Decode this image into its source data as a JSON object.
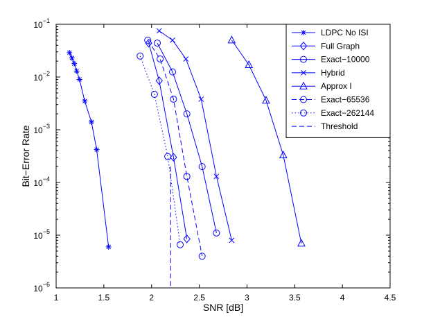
{
  "chart_data": {
    "type": "line",
    "title": "",
    "xlabel": "SNR [dB]",
    "ylabel": "Bit−Error Rate",
    "xlim": [
      1,
      4.5
    ],
    "ylim": [
      1e-06,
      0.1
    ],
    "y_scale": "log",
    "grid": false,
    "legend_position": "top-right",
    "x_ticks": [
      1,
      1.5,
      2,
      2.5,
      3,
      3.5,
      4,
      4.5
    ],
    "x_tick_labels": [
      "1",
      "1.5",
      "2",
      "2.5",
      "3",
      "3.5",
      "4",
      "4.5"
    ],
    "y_ticks": [
      1e-06,
      1e-05,
      0.0001,
      0.001,
      0.01,
      0.1
    ],
    "y_tick_bases": [
      "10",
      "10",
      "10",
      "10",
      "10",
      "10"
    ],
    "y_tick_exps": [
      "−6",
      "−5",
      "−4",
      "−3",
      "−2",
      "−1"
    ],
    "series": [
      {
        "name": "LDPC No ISI",
        "marker": "star",
        "line": "solid",
        "color": "#0000ff",
        "x": [
          1.14,
          1.165,
          1.19,
          1.215,
          1.245,
          1.3,
          1.37,
          1.425,
          1.55
        ],
        "y": [
          0.029,
          0.023,
          0.018,
          0.013,
          0.009,
          0.0035,
          0.0014,
          0.00042,
          6e-06
        ]
      },
      {
        "name": "Full Graph",
        "marker": "diamond",
        "line": "solid",
        "color": "#0000ff",
        "x": [
          1.97,
          2.08,
          2.23,
          2.37
        ],
        "y": [
          0.044,
          0.0085,
          0.0003,
          8.5e-06
        ]
      },
      {
        "name": "Exact−10000",
        "marker": "circle",
        "line": "solid",
        "color": "#0000ff",
        "x": [
          2.06,
          2.22,
          2.37,
          2.53,
          2.68
        ],
        "y": [
          0.044,
          0.0125,
          0.002,
          0.0002,
          1.1e-05
        ]
      },
      {
        "name": "Hybrid",
        "marker": "x",
        "line": "solid",
        "color": "#0000ff",
        "x": [
          2.08,
          2.22,
          2.36,
          2.52,
          2.68,
          2.84
        ],
        "y": [
          0.075,
          0.05,
          0.022,
          0.0038,
          0.00013,
          8e-06
        ]
      },
      {
        "name": "Approx I",
        "marker": "triangle",
        "line": "solid",
        "color": "#0000ff",
        "x": [
          2.84,
          3.02,
          3.2,
          3.38,
          3.57
        ],
        "y": [
          0.05,
          0.017,
          0.0036,
          0.00033,
          7e-06
        ]
      },
      {
        "name": "Exact−65536",
        "marker": "circle",
        "line": "dashed",
        "color": "#0000ff",
        "x": [
          1.96,
          2.09,
          2.23,
          2.37,
          2.53
        ],
        "y": [
          0.05,
          0.022,
          0.0038,
          0.00013,
          4e-06
        ]
      },
      {
        "name": "Exact−262144",
        "marker": "circle",
        "line": "dotted",
        "color": "#0000ff",
        "x": [
          1.88,
          2.03,
          2.17,
          2.3
        ],
        "y": [
          0.025,
          0.0047,
          0.00031,
          6.6e-06
        ]
      },
      {
        "name": "Threshold",
        "marker": "none",
        "line": "dashed",
        "color": "#0000ff",
        "x": [
          2.2,
          2.2
        ],
        "y": [
          0.0002,
          1e-06
        ]
      }
    ]
  }
}
